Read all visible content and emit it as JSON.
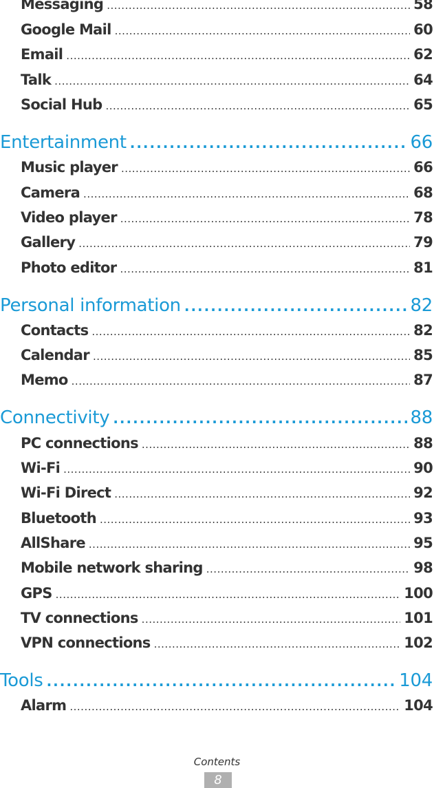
{
  "toc": [
    {
      "kind": "sub",
      "label": "Messaging",
      "page": "58"
    },
    {
      "kind": "sub",
      "label": "Google Mail",
      "page": "60"
    },
    {
      "kind": "sub",
      "label": "Email",
      "page": "62"
    },
    {
      "kind": "sub",
      "label": "Talk",
      "page": "64"
    },
    {
      "kind": "sub",
      "label": "Social Hub",
      "page": "65"
    },
    {
      "kind": "sec",
      "label": "Entertainment",
      "page": "66"
    },
    {
      "kind": "sub",
      "label": "Music player",
      "page": "66"
    },
    {
      "kind": "sub",
      "label": "Camera",
      "page": "68"
    },
    {
      "kind": "sub",
      "label": "Video player",
      "page": "78"
    },
    {
      "kind": "sub",
      "label": "Gallery",
      "page": "79"
    },
    {
      "kind": "sub",
      "label": "Photo editor",
      "page": "81"
    },
    {
      "kind": "sec",
      "label": "Personal information",
      "page": "82"
    },
    {
      "kind": "sub",
      "label": "Contacts",
      "page": "82"
    },
    {
      "kind": "sub",
      "label": "Calendar",
      "page": "85"
    },
    {
      "kind": "sub",
      "label": "Memo",
      "page": "87"
    },
    {
      "kind": "sec",
      "label": "Connectivity",
      "page": "88"
    },
    {
      "kind": "sub",
      "label": "PC connections",
      "page": "88"
    },
    {
      "kind": "sub",
      "label": "Wi-Fi",
      "page": "90"
    },
    {
      "kind": "sub",
      "label": "Wi-Fi Direct",
      "page": "92"
    },
    {
      "kind": "sub",
      "label": "Bluetooth",
      "page": "93"
    },
    {
      "kind": "sub",
      "label": "AllShare",
      "page": "95"
    },
    {
      "kind": "sub",
      "label": "Mobile network sharing",
      "page": "98"
    },
    {
      "kind": "sub",
      "label": "GPS",
      "page": "100"
    },
    {
      "kind": "sub",
      "label": "TV connections",
      "page": "101"
    },
    {
      "kind": "sub",
      "label": "VPN connections",
      "page": "102"
    },
    {
      "kind": "sec",
      "label": "Tools",
      "page": "104"
    },
    {
      "kind": "sub",
      "label": "Alarm",
      "page": "104"
    }
  ],
  "footer": {
    "label": "Contents",
    "page_number": "8"
  },
  "colors": {
    "section": "#1a9ad6",
    "text": "#333333",
    "page_box": "#b0b0b0"
  }
}
